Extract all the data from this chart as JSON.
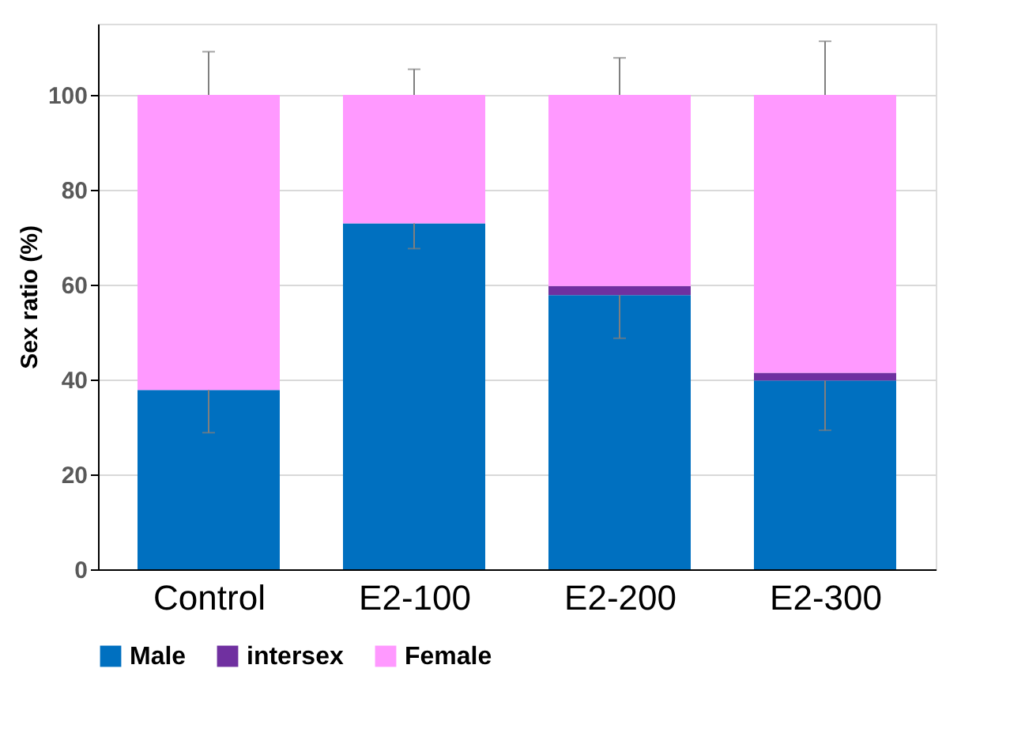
{
  "chart_data": {
    "type": "bar",
    "stacked": true,
    "ylabel": "Sex ratio (%)",
    "categories": [
      "Control",
      "E2-100",
      "E2-200",
      "E2-300"
    ],
    "series": [
      {
        "name": "Male",
        "color": "#0070c0",
        "values": [
          37.8,
          72.9,
          57.8,
          39.8
        ],
        "errors": [
          [
            28.8,
            37.8
          ],
          [
            67.6,
            72.9
          ],
          [
            48.7,
            57.8
          ],
          [
            29.3,
            39.8
          ]
        ]
      },
      {
        "name": "intersex",
        "color": "#7030a0",
        "values": [
          0,
          0,
          1.9,
          1.6
        ]
      },
      {
        "name": "Female",
        "color": "#ff99ff",
        "values": [
          62.2,
          27.1,
          40.3,
          58.6
        ],
        "errors": [
          [
            100,
            109.1
          ],
          [
            100,
            105.4
          ],
          [
            100,
            107.8
          ],
          [
            100,
            111.3
          ]
        ]
      }
    ],
    "ylim": [
      0,
      115
    ],
    "yticks": [
      0,
      20,
      40,
      60,
      80,
      100
    ],
    "grid": "y",
    "legend": "bottom"
  }
}
